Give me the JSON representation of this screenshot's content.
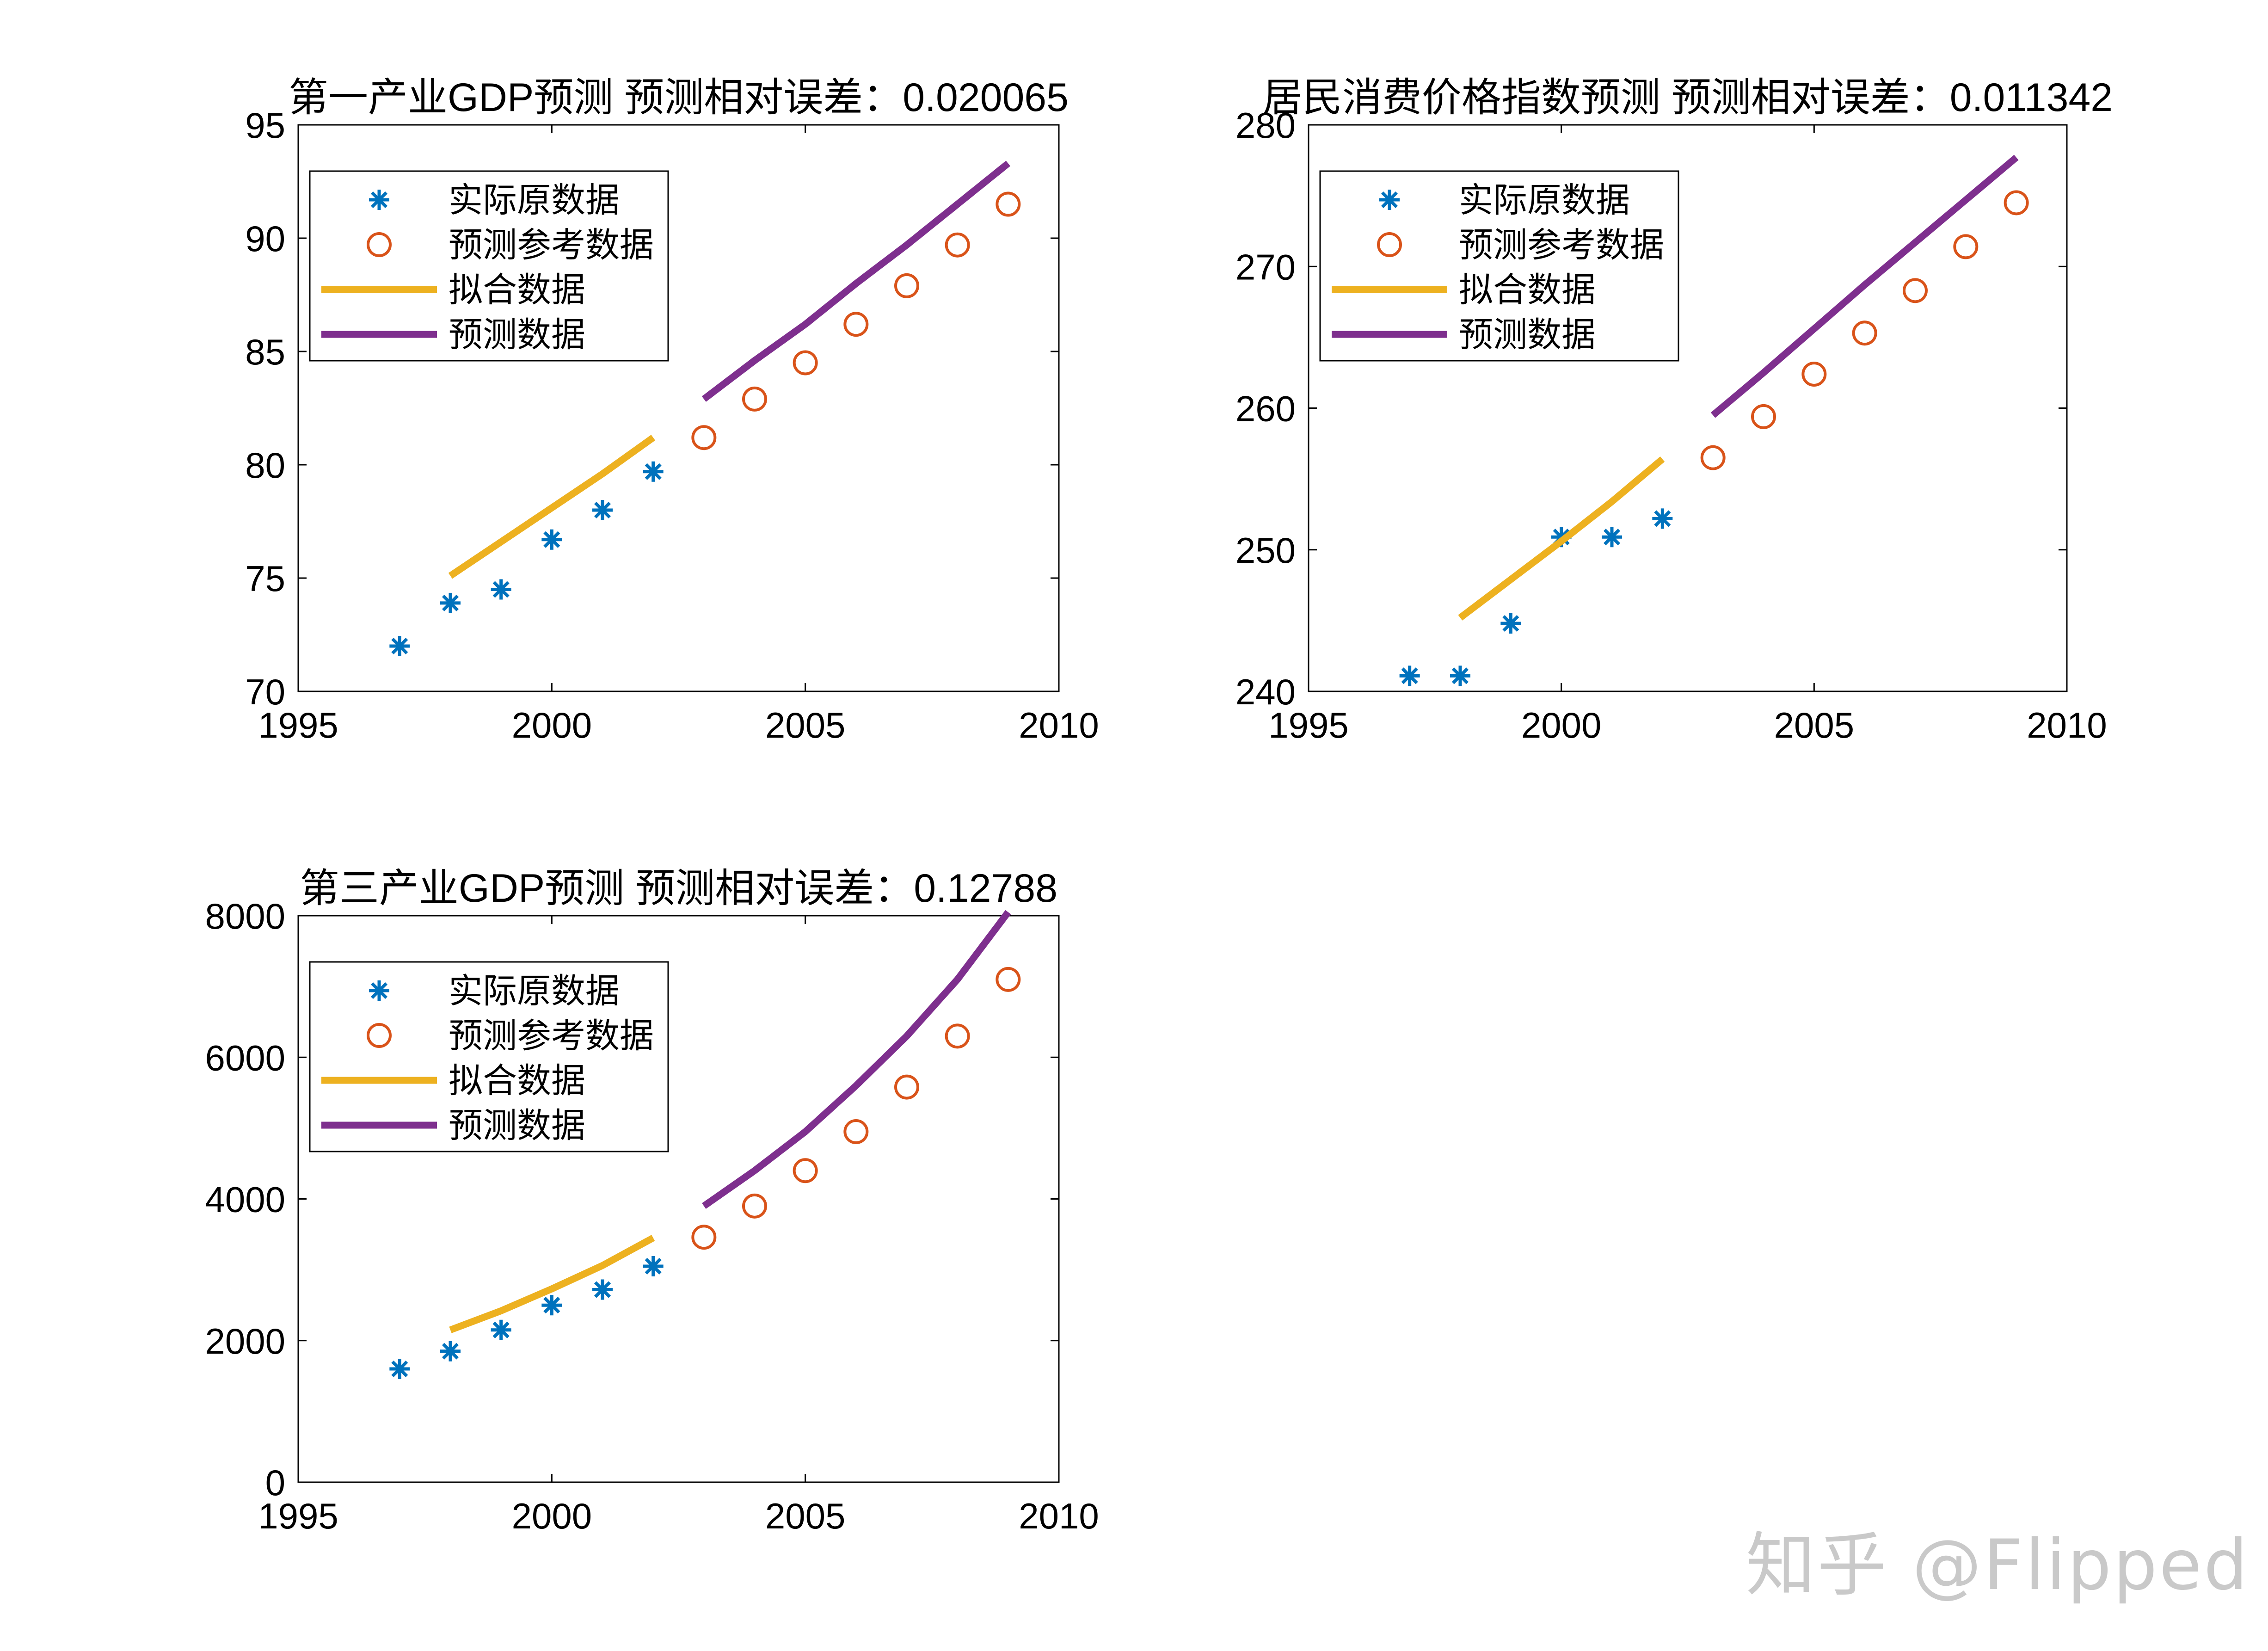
{
  "colors": {
    "actual": "#0072BD",
    "forecast_ref": "#D95319",
    "fit": "#EDB120",
    "forecast": "#7E2F8E",
    "axis": "#000000"
  },
  "legend_labels": [
    "实际原数据",
    "预测参考数据",
    "拟合数据",
    "预测数据"
  ],
  "watermark": "知乎 @Flipped",
  "chart_data": [
    {
      "type": "line",
      "title": "第一产业GDP预测  预测相对误差：0.020065",
      "xlim": [
        1995,
        2010
      ],
      "ylim": [
        70,
        95
      ],
      "xticks": [
        1995,
        2000,
        2005,
        2010
      ],
      "yticks": [
        70,
        75,
        80,
        85,
        90,
        95
      ],
      "legend": "top-left",
      "series": [
        {
          "name": "实际原数据",
          "style": "star",
          "x": [
            1997,
            1998,
            1999,
            2000,
            2001,
            2002
          ],
          "y": [
            72.0,
            73.9,
            74.5,
            76.7,
            78.0,
            79.7
          ]
        },
        {
          "name": "预测参考数据",
          "style": "circle",
          "x": [
            2003,
            2004,
            2005,
            2006,
            2007,
            2008,
            2009
          ],
          "y": [
            81.2,
            82.9,
            84.5,
            86.2,
            87.9,
            89.7,
            91.5
          ]
        },
        {
          "name": "拟合数据",
          "style": "line",
          "x": [
            1998,
            1999,
            2000,
            2001,
            2002
          ],
          "y": [
            75.1,
            76.6,
            78.1,
            79.6,
            81.2
          ]
        },
        {
          "name": "预测数据",
          "style": "line",
          "x": [
            2003,
            2004,
            2005,
            2006,
            2007,
            2008,
            2009
          ],
          "y": [
            82.9,
            84.6,
            86.2,
            88.0,
            89.7,
            91.5,
            93.3
          ]
        }
      ]
    },
    {
      "type": "line",
      "title": "居民消费价格指数预测  预测相对误差：0.011342",
      "xlim": [
        1995,
        2010
      ],
      "ylim": [
        240,
        280
      ],
      "xticks": [
        1995,
        2000,
        2005,
        2010
      ],
      "yticks": [
        240,
        250,
        260,
        270,
        280
      ],
      "legend": "top-left",
      "series": [
        {
          "name": "实际原数据",
          "style": "star",
          "x": [
            1997,
            1998,
            1999,
            2000,
            2001,
            2002
          ],
          "y": [
            241.1,
            241.1,
            244.8,
            250.9,
            250.9,
            252.2
          ]
        },
        {
          "name": "预测参考数据",
          "style": "circle",
          "x": [
            2003,
            2004,
            2005,
            2006,
            2007,
            2008,
            2009
          ],
          "y": [
            256.5,
            259.4,
            262.4,
            265.3,
            268.3,
            271.4,
            274.5
          ]
        },
        {
          "name": "拟合数据",
          "style": "line",
          "x": [
            1998,
            1999,
            2000,
            2001,
            2002
          ],
          "y": [
            245.2,
            247.9,
            250.6,
            253.4,
            256.4
          ]
        },
        {
          "name": "预测数据",
          "style": "line",
          "x": [
            2003,
            2004,
            2005,
            2006,
            2007,
            2008,
            2009
          ],
          "y": [
            259.5,
            262.5,
            265.6,
            268.7,
            271.7,
            274.7,
            277.7
          ]
        }
      ]
    },
    {
      "type": "line",
      "title": "第三产业GDP预测  预测相对误差：0.12788",
      "xlim": [
        1995,
        2010
      ],
      "ylim": [
        0,
        8000
      ],
      "xticks": [
        1995,
        2000,
        2005,
        2010
      ],
      "yticks": [
        0,
        2000,
        4000,
        6000,
        8000
      ],
      "legend": "top-left",
      "series": [
        {
          "name": "实际原数据",
          "style": "star",
          "x": [
            1997,
            1998,
            1999,
            2000,
            2001,
            2002
          ],
          "y": [
            1600,
            1850,
            2150,
            2500,
            2720,
            3050
          ]
        },
        {
          "name": "预测参考数据",
          "style": "circle",
          "x": [
            2003,
            2004,
            2005,
            2006,
            2007,
            2008,
            2009
          ],
          "y": [
            3460,
            3900,
            4400,
            4950,
            5580,
            6300,
            7100
          ]
        },
        {
          "name": "拟合数据",
          "style": "line",
          "x": [
            1998,
            1999,
            2000,
            2001,
            2002
          ],
          "y": [
            2150,
            2420,
            2730,
            3060,
            3450
          ]
        },
        {
          "name": "预测数据",
          "style": "line",
          "x": [
            2003,
            2004,
            2005,
            2006,
            2007,
            2008,
            2009
          ],
          "y": [
            3900,
            4400,
            4950,
            5600,
            6300,
            7100,
            8050
          ]
        }
      ]
    }
  ]
}
